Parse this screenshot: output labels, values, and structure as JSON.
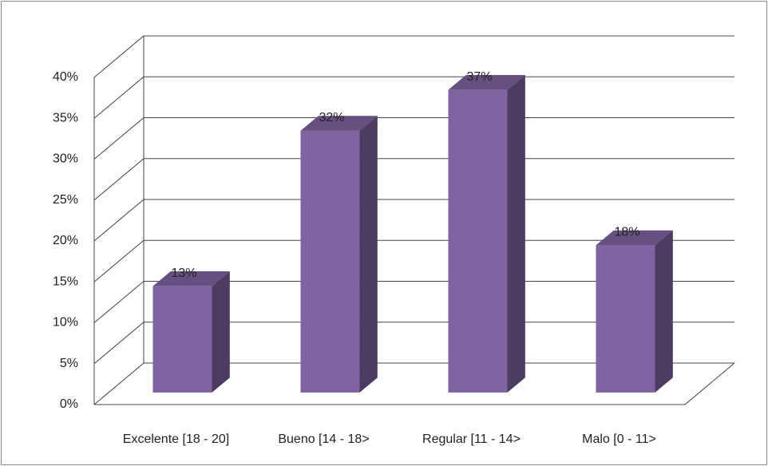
{
  "chart_data": {
    "type": "bar3d",
    "categories": [
      "Excelente [18 - 20]",
      "Bueno [14 - 18>",
      "Regular [11 - 14>",
      "Malo [0 - 11>"
    ],
    "values": [
      13,
      32,
      37,
      18
    ],
    "value_labels": [
      "13%",
      "32%",
      "37%",
      "18%"
    ],
    "color": "#8064a2",
    "ylim": [
      0,
      40
    ],
    "yticks": [
      {
        "value": 0,
        "label": "0%"
      },
      {
        "value": 5,
        "label": "5%"
      },
      {
        "value": 10,
        "label": "10%"
      },
      {
        "value": 15,
        "label": "15%"
      },
      {
        "value": 20,
        "label": "20%"
      },
      {
        "value": 25,
        "label": "25%"
      },
      {
        "value": 30,
        "label": "30%"
      },
      {
        "value": 35,
        "label": "35%"
      },
      {
        "value": 40,
        "label": "40%"
      }
    ],
    "grid": true
  }
}
